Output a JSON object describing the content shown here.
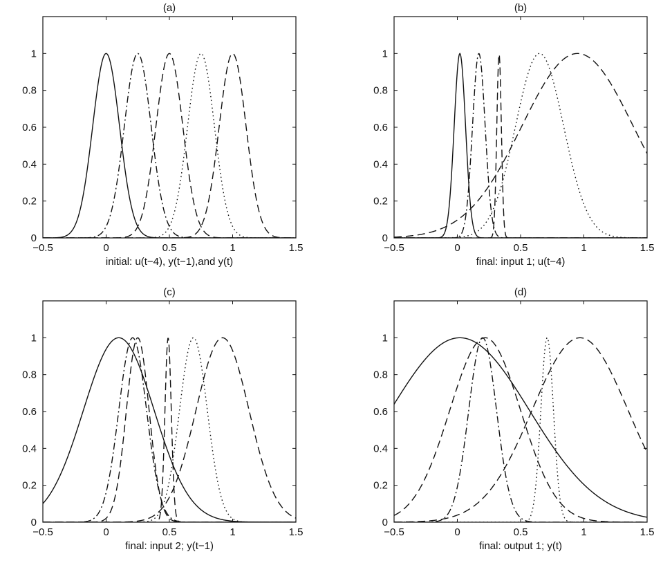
{
  "chart_data": [
    {
      "type": "line",
      "title": "(a)",
      "xlabel": "initial: u(t−4), y(t−1),and y(t)",
      "ylabel": "",
      "xlim": [
        -0.5,
        1.5
      ],
      "ylim": [
        0,
        1.2
      ],
      "xticks": [
        -0.5,
        0,
        0.5,
        1,
        1.5
      ],
      "xtick_labels": [
        "−0.5",
        "0",
        "0.5",
        "1",
        "1.5"
      ],
      "yticks": [
        0,
        0.2,
        0.4,
        0.6,
        0.8,
        1
      ],
      "ytick_labels": [
        "0",
        "0.2",
        "0.4",
        "0.6",
        "0.8",
        "1"
      ],
      "grid": false,
      "series": [
        {
          "style": "solid",
          "shape": "gaussian",
          "center": 0.0,
          "sigma": 0.106
        },
        {
          "style": "dashdot",
          "shape": "gaussian",
          "center": 0.25,
          "sigma": 0.106
        },
        {
          "style": "dashed",
          "shape": "gaussian",
          "center": 0.5,
          "sigma": 0.106
        },
        {
          "style": "dotted",
          "shape": "gaussian",
          "center": 0.75,
          "sigma": 0.106
        },
        {
          "style": "dashed",
          "shape": "gaussian",
          "center": 1.0,
          "sigma": 0.106
        }
      ]
    },
    {
      "type": "line",
      "title": "(b)",
      "xlabel": "final: input 1; u(t−4)",
      "ylabel": "",
      "xlim": [
        -0.5,
        1.5
      ],
      "ylim": [
        0,
        1.2
      ],
      "xticks": [
        -0.5,
        0,
        0.5,
        1,
        1.5
      ],
      "xtick_labels": [
        "−0.5",
        "0",
        "0.5",
        "1",
        "1.5"
      ],
      "yticks": [
        0,
        0.2,
        0.4,
        0.6,
        0.8,
        1
      ],
      "ytick_labels": [
        "0",
        "0.2",
        "0.4",
        "0.6",
        "0.8",
        "1"
      ],
      "grid": false,
      "series": [
        {
          "style": "solid",
          "shape": "gaussian",
          "center": 0.02,
          "sigma": 0.045
        },
        {
          "style": "dashdot",
          "shape": "gaussian",
          "center": 0.17,
          "sigma": 0.05
        },
        {
          "style": "dashed",
          "shape": "gaussian",
          "center": 0.33,
          "sigma": 0.018
        },
        {
          "style": "dotted",
          "shape": "gaussian",
          "center": 0.65,
          "sigma": 0.19
        },
        {
          "style": "dashed",
          "shape": "gaussian",
          "center": 0.95,
          "sigma": 0.44
        }
      ]
    },
    {
      "type": "line",
      "title": "(c)",
      "xlabel": "final: input 2; y(t−1)",
      "ylabel": "",
      "xlim": [
        -0.5,
        1.5
      ],
      "ylim": [
        0,
        1.2
      ],
      "xticks": [
        -0.5,
        0,
        0.5,
        1,
        1.5
      ],
      "xtick_labels": [
        "−0.5",
        "0",
        "0.5",
        "1",
        "1.5"
      ],
      "yticks": [
        0,
        0.2,
        0.4,
        0.6,
        0.8,
        1
      ],
      "ytick_labels": [
        "0",
        "0.2",
        "0.4",
        "0.6",
        "0.8",
        "1"
      ],
      "grid": false,
      "series": [
        {
          "style": "solid",
          "shape": "gaussian",
          "center": 0.1,
          "sigma": 0.28
        },
        {
          "style": "dashdot",
          "shape": "gaussian",
          "center": 0.21,
          "sigma": 0.11
        },
        {
          "style": "dashed",
          "shape": "gaussian",
          "center": 0.25,
          "sigma": 0.09
        },
        {
          "style": "dashed",
          "shape": "gaussian",
          "center": 0.49,
          "sigma": 0.025
        },
        {
          "style": "dotted",
          "shape": "gaussian",
          "center": 0.69,
          "sigma": 0.11
        },
        {
          "style": "dashed",
          "shape": "gaussian",
          "center": 0.92,
          "sigma": 0.21
        }
      ]
    },
    {
      "type": "line",
      "title": "(d)",
      "xlabel": "final: output 1; y(t)",
      "ylabel": "",
      "xlim": [
        -0.5,
        1.5
      ],
      "ylim": [
        0,
        1.2
      ],
      "xticks": [
        -0.5,
        0,
        0.5,
        1,
        1.5
      ],
      "xtick_labels": [
        "−0.5",
        "0",
        "0.5",
        "1",
        "1.5"
      ],
      "yticks": [
        0,
        0.2,
        0.4,
        0.6,
        0.8,
        1
      ],
      "ytick_labels": [
        "0",
        "0.2",
        "0.4",
        "0.6",
        "0.8",
        "1"
      ],
      "grid": false,
      "series": [
        {
          "style": "solid",
          "shape": "gaussian",
          "center": 0.02,
          "sigma": 0.55
        },
        {
          "style": "dashed",
          "shape": "gaussian",
          "center": 0.22,
          "sigma": 0.28
        },
        {
          "style": "dashdot",
          "shape": "gaussian",
          "center": 0.2,
          "sigma": 0.11
        },
        {
          "style": "dotted",
          "shape": "gaussian",
          "center": 0.71,
          "sigma": 0.05
        },
        {
          "style": "dashed",
          "shape": "gaussian",
          "center": 0.97,
          "sigma": 0.38
        }
      ]
    }
  ]
}
